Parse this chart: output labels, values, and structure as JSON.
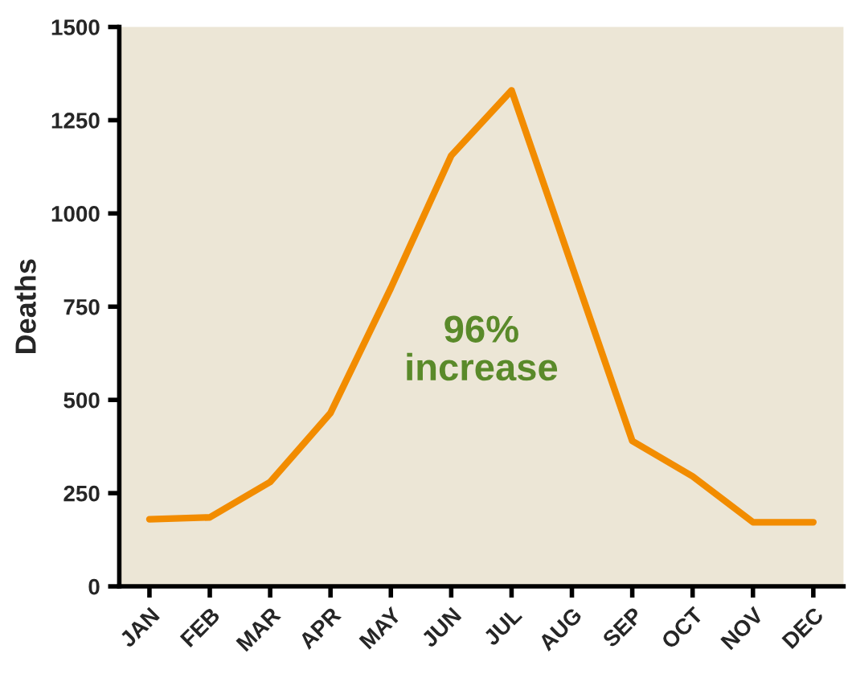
{
  "chart_data": {
    "type": "line",
    "ylabel": "Deaths",
    "categories": [
      "JAN",
      "FEB",
      "MAR",
      "APR",
      "MAY",
      "JUN",
      "JUL",
      "AUG",
      "SEP",
      "OCT",
      "NOV",
      "DEC"
    ],
    "series": [
      {
        "color": "#f28c00",
        "values": [
          180,
          185,
          280,
          465,
          800,
          1155,
          1330,
          860,
          390,
          295,
          172,
          172
        ]
      }
    ],
    "ylim": [
      0,
      1500
    ],
    "yticks": [
      0,
      250,
      500,
      750,
      1000,
      1250,
      1500
    ],
    "annotations": [
      "96%\nincrease"
    ],
    "grid": false,
    "legend": false,
    "marker": "none",
    "line_style": "solid"
  }
}
